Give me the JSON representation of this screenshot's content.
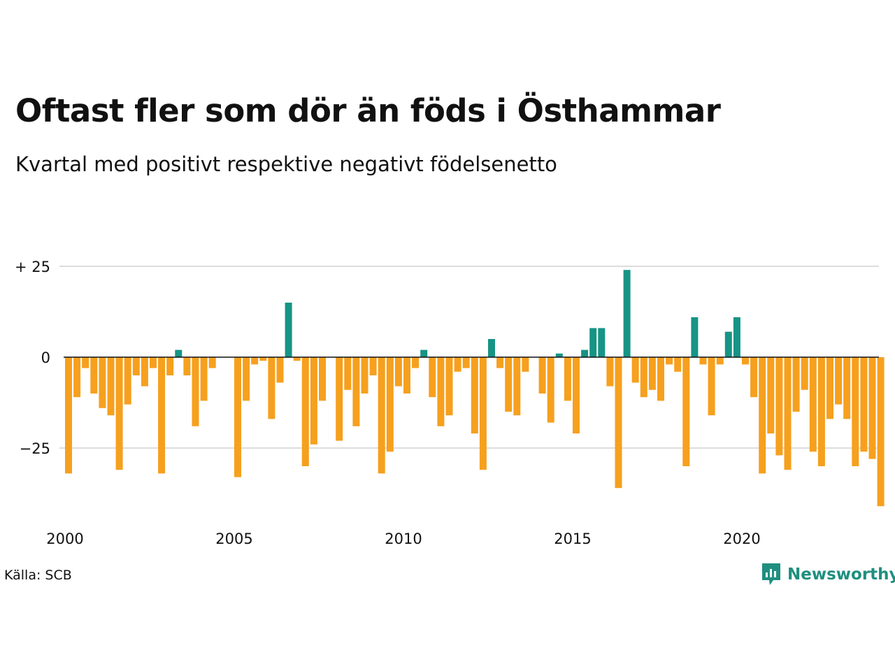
{
  "title": "Oftast fler som dör än föds i Östhammar",
  "subtitle": "Kvartal med positivt respektive negativt födelsenetto",
  "source": "Källa: SCB",
  "brand": {
    "name": "Newsworthy",
    "icon": "newsworthy-logo-icon",
    "color": "#1f8f7f"
  },
  "colors": {
    "positive": "#169485",
    "negative": "#f6a01e",
    "grid": "#dddddd",
    "zero": "#111111"
  },
  "chart_data": {
    "type": "bar",
    "title": "Oftast fler som dör än föds i Östhammar",
    "subtitle": "Kvartal med positivt respektive negativt födelsenetto",
    "xlabel": "",
    "ylabel": "",
    "ylim": [
      -43,
      35
    ],
    "x_start": "2000-Q1",
    "x_ticks": [
      "2000",
      "2005",
      "2010",
      "2015",
      "2020"
    ],
    "y_ticks": [
      {
        "value": 25,
        "label": "+ 25"
      },
      {
        "value": 0,
        "label": "0"
      },
      {
        "value": -25,
        "label": "−25"
      }
    ],
    "grid": true,
    "legend": "none",
    "categories": [
      "2000-Q1",
      "2000-Q2",
      "2000-Q3",
      "2000-Q4",
      "2001-Q1",
      "2001-Q2",
      "2001-Q3",
      "2001-Q4",
      "2002-Q1",
      "2002-Q2",
      "2002-Q3",
      "2002-Q4",
      "2003-Q1",
      "2003-Q2",
      "2003-Q3",
      "2003-Q4",
      "2004-Q1",
      "2004-Q2",
      "2004-Q3",
      "2004-Q4",
      "2005-Q1",
      "2005-Q2",
      "2005-Q3",
      "2005-Q4",
      "2006-Q1",
      "2006-Q2",
      "2006-Q3",
      "2006-Q4",
      "2007-Q1",
      "2007-Q2",
      "2007-Q3",
      "2007-Q4",
      "2008-Q1",
      "2008-Q2",
      "2008-Q3",
      "2008-Q4",
      "2009-Q1",
      "2009-Q2",
      "2009-Q3",
      "2009-Q4",
      "2010-Q1",
      "2010-Q2",
      "2010-Q3",
      "2010-Q4",
      "2011-Q1",
      "2011-Q2",
      "2011-Q3",
      "2011-Q4",
      "2012-Q1",
      "2012-Q2",
      "2012-Q3",
      "2012-Q4",
      "2013-Q1",
      "2013-Q2",
      "2013-Q3",
      "2013-Q4",
      "2014-Q1",
      "2014-Q2",
      "2014-Q3",
      "2014-Q4",
      "2015-Q1",
      "2015-Q2",
      "2015-Q3",
      "2015-Q4",
      "2016-Q1",
      "2016-Q2",
      "2016-Q3",
      "2016-Q4",
      "2017-Q1",
      "2017-Q2",
      "2017-Q3",
      "2017-Q4",
      "2018-Q1",
      "2018-Q2",
      "2018-Q3",
      "2018-Q4",
      "2019-Q1",
      "2019-Q2",
      "2019-Q3",
      "2019-Q4",
      "2020-Q1",
      "2020-Q2",
      "2020-Q3",
      "2020-Q4",
      "2021-Q1",
      "2021-Q2",
      "2021-Q3",
      "2021-Q4",
      "2022-Q1",
      "2022-Q2",
      "2022-Q3",
      "2022-Q4",
      "2023-Q1",
      "2023-Q2",
      "2023-Q3",
      "2023-Q4",
      "2024-Q1"
    ],
    "values": [
      -32,
      -11,
      -3,
      -10,
      -14,
      -16,
      -31,
      -13,
      -5,
      -8,
      -3,
      -32,
      -5,
      2,
      -5,
      -19,
      -12,
      -3,
      0,
      0,
      -33,
      -12,
      -2,
      -1,
      -17,
      -7,
      15,
      -1,
      -30,
      -24,
      -12,
      0,
      -23,
      -9,
      -19,
      -10,
      -5,
      -32,
      -26,
      -8,
      -10,
      -3,
      2,
      -11,
      -19,
      -16,
      -4,
      -3,
      -21,
      -31,
      5,
      -3,
      -15,
      -16,
      -4,
      0,
      -10,
      -18,
      1,
      -12,
      -21,
      2,
      8,
      8,
      -8,
      -36,
      24,
      -7,
      -11,
      -9,
      -12,
      -2,
      -4,
      -30,
      11,
      -2,
      -16,
      -2,
      7,
      11,
      -2,
      -11,
      -32,
      -21,
      -27,
      -31,
      -15,
      -9,
      -26,
      -30,
      -17,
      -13,
      -17,
      -30,
      -26,
      -28,
      -41
    ]
  }
}
